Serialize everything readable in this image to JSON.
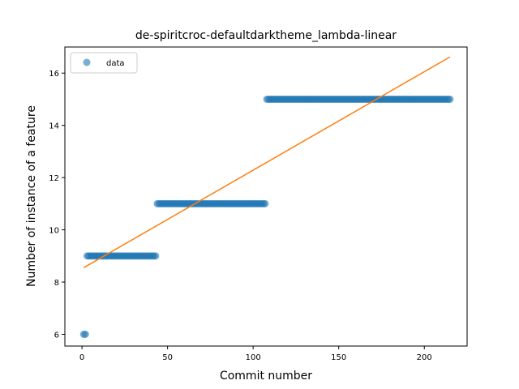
{
  "chart_data": {
    "type": "scatter",
    "title": "de-spiritcroc-defaultdarktheme_lambda-linear",
    "xlabel": "Commit number",
    "ylabel": "Number of instance of a feature",
    "xlim": [
      -10,
      225
    ],
    "ylim": [
      5.55,
      17.0
    ],
    "xticks": [
      0,
      50,
      100,
      150,
      200
    ],
    "yticks": [
      6,
      8,
      10,
      12,
      14,
      16
    ],
    "grid": false,
    "legend_position": "upper-left",
    "series": [
      {
        "name": "data",
        "kind": "scatter",
        "color": "#1f77b4",
        "alpha": 0.6,
        "segments": [
          {
            "x_start": 1,
            "x_end": 2,
            "y": 6
          },
          {
            "x_start": 3,
            "x_end": 43,
            "y": 9
          },
          {
            "x_start": 44,
            "x_end": 107,
            "y": 11
          },
          {
            "x_start": 108,
            "x_end": 215,
            "y": 15
          }
        ]
      },
      {
        "name": "",
        "kind": "line",
        "color": "#ff7f0e",
        "x": [
          1,
          215
        ],
        "y": [
          8.55,
          16.62
        ]
      }
    ]
  }
}
